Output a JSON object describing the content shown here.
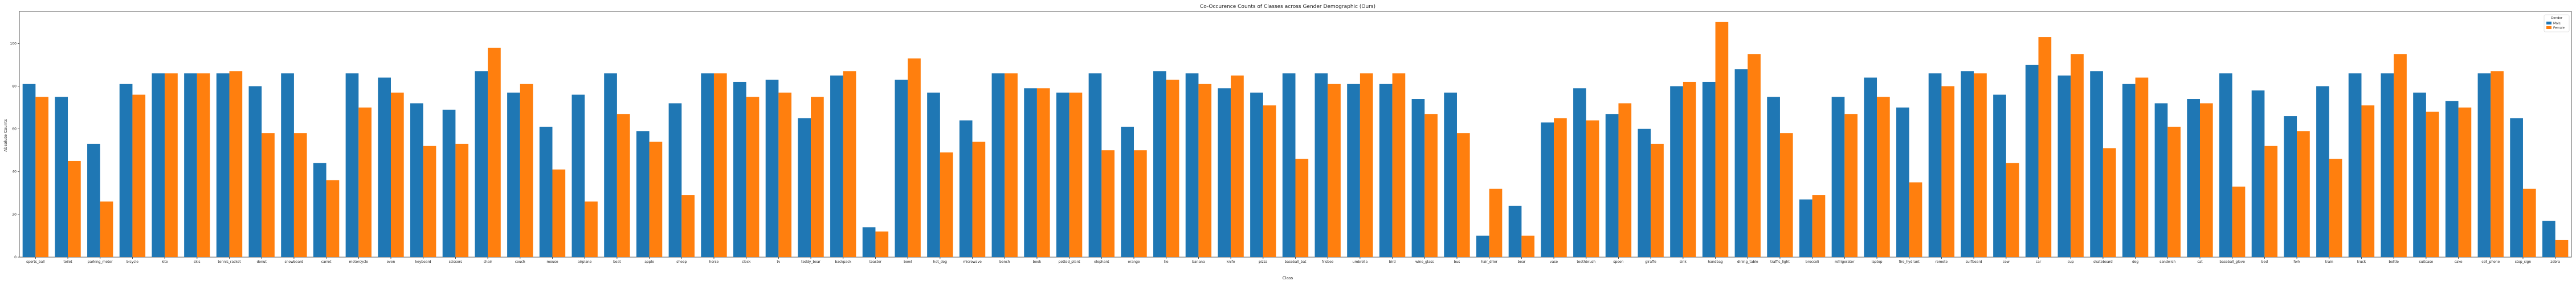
{
  "chart_data": {
    "type": "bar",
    "title": "Co-Occurence Counts of Classes across Gender Demographic (Ours)",
    "xlabel": "Class",
    "ylabel": "Absolute Counts",
    "ylim": [
      0,
      115
    ],
    "yticks": [
      0,
      20,
      40,
      60,
      80,
      100
    ],
    "grid": false,
    "legend": {
      "title": "Gender",
      "placement": "top-right"
    },
    "categories": [
      "sports_ball",
      "toilet",
      "parking_meter",
      "bicycle",
      "kite",
      "skis",
      "tennis_racket",
      "donut",
      "snowboard",
      "carrot",
      "motorcycle",
      "oven",
      "keyboard",
      "scissors",
      "chair",
      "couch",
      "mouse",
      "airplane",
      "boat",
      "apple",
      "sheep",
      "horse",
      "clock",
      "tv",
      "teddy_bear",
      "backpack",
      "toaster",
      "bowl",
      "hot_dog",
      "microwave",
      "bench",
      "book",
      "potted_plant",
      "elephant",
      "orange",
      "tie",
      "banana",
      "knife",
      "pizza",
      "baseball_bat",
      "frisbee",
      "umbrella",
      "bird",
      "wine_glass",
      "bus",
      "hair_drier",
      "bear",
      "vase",
      "toothbrush",
      "spoon",
      "giraffe",
      "sink",
      "handbag",
      "dining_table",
      "traffic_light",
      "broccoli",
      "refrigerator",
      "laptop",
      "fire_hydrant",
      "remote",
      "surfboard",
      "cow",
      "car",
      "cup",
      "skateboard",
      "dog",
      "sandwich",
      "cat",
      "baseball_glove",
      "bed",
      "fork",
      "train",
      "truck",
      "bottle",
      "suitcase",
      "cake",
      "cell_phone",
      "stop_sign",
      "zebra"
    ],
    "series": [
      {
        "name": "Male",
        "color": "#1f77b4",
        "values": [
          81,
          75,
          53,
          81,
          86,
          86,
          86,
          80,
          86,
          44,
          86,
          84,
          72,
          69,
          87,
          77,
          61,
          76,
          86,
          59,
          72,
          86,
          82,
          83,
          65,
          85,
          14,
          83,
          77,
          64,
          86,
          79,
          77,
          86,
          61,
          87,
          86,
          79,
          77,
          86,
          86,
          81,
          81,
          74,
          77,
          10,
          24,
          63,
          79,
          67,
          60,
          80,
          82,
          88,
          75,
          27,
          75,
          84,
          70,
          86,
          87,
          76,
          90,
          85,
          87,
          81,
          72,
          74,
          86,
          78,
          66,
          80,
          86,
          86,
          77,
          73,
          86,
          65,
          17
        ],
        "label_color": "#1f77b4"
      },
      {
        "name": "Female",
        "color": "#ff7f0e",
        "values": [
          75,
          45,
          26,
          76,
          86,
          86,
          87,
          58,
          58,
          36,
          70,
          77,
          52,
          53,
          98,
          81,
          41,
          26,
          67,
          54,
          29,
          86,
          75,
          77,
          75,
          87,
          12,
          93,
          49,
          54,
          86,
          79,
          77,
          50,
          50,
          83,
          81,
          85,
          71,
          46,
          81,
          86,
          86,
          67,
          58,
          32,
          10,
          65,
          64,
          72,
          53,
          82,
          110,
          95,
          58,
          29,
          67,
          75,
          35,
          80,
          86,
          44,
          103,
          95,
          51,
          84,
          61,
          72,
          33,
          52,
          59,
          46,
          71,
          95,
          68,
          70,
          87,
          32,
          8
        ]
      }
    ]
  }
}
